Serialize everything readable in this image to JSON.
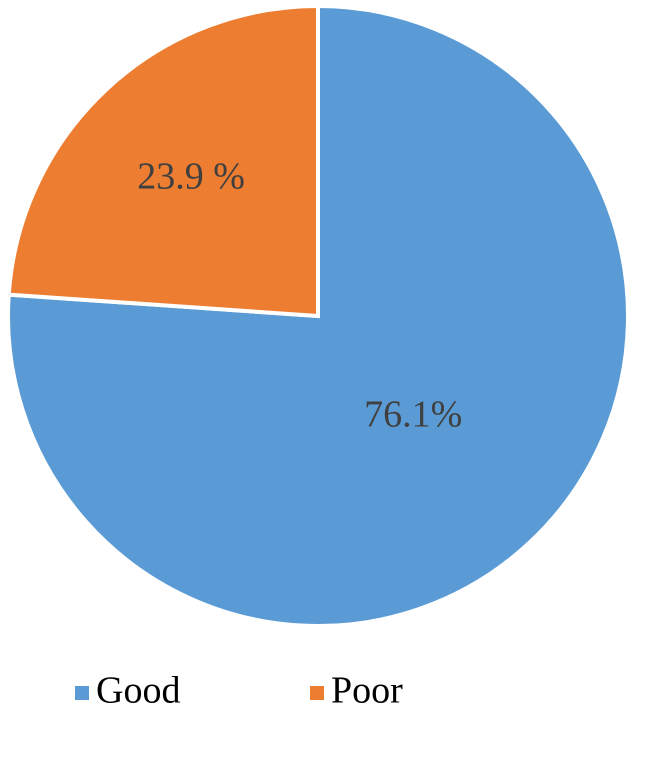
{
  "chart_data": {
    "type": "pie",
    "categories": [
      "Good",
      "Poor"
    ],
    "values": [
      76.1,
      23.9
    ],
    "value_labels": [
      "76.1%",
      "23.9 %"
    ],
    "colors": [
      "#5b9bd5",
      "#ed7d31"
    ]
  }
}
